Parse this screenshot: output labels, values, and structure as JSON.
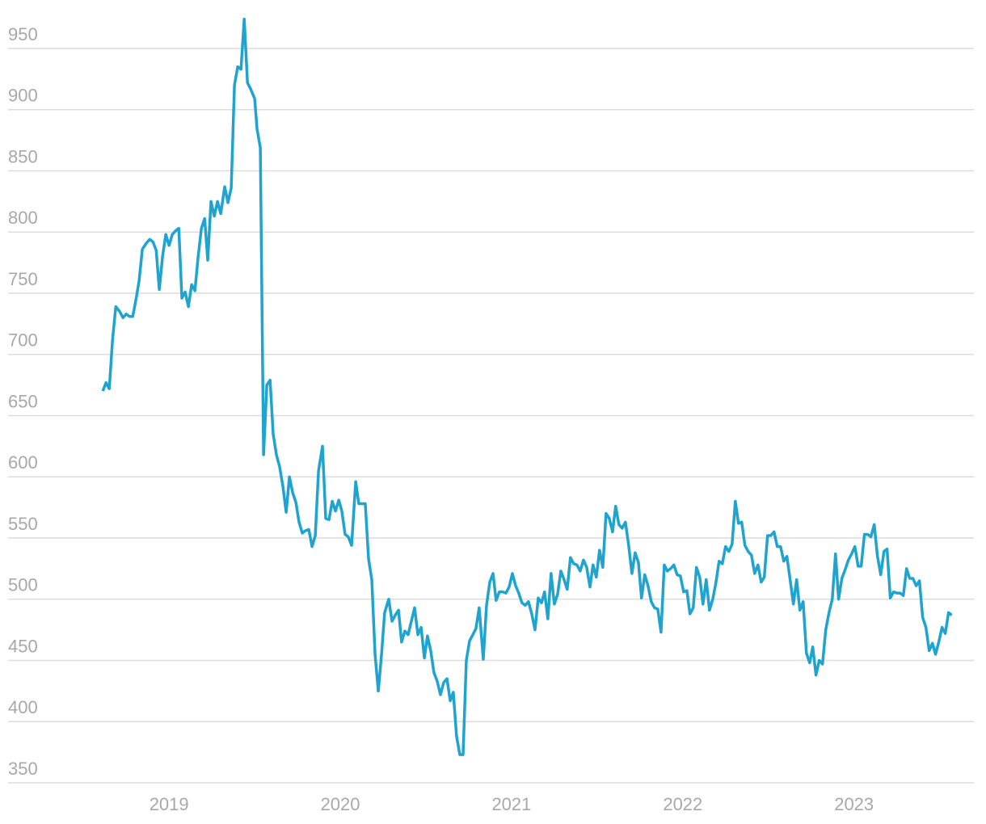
{
  "chart_data": {
    "type": "line",
    "x": [
      2018.613,
      2018.632,
      2018.651,
      2018.67,
      2018.689,
      2018.712,
      2018.731,
      2018.75,
      2018.769,
      2018.788,
      2018.807,
      2018.825,
      2018.844,
      2018.868,
      2018.887,
      2018.906,
      2018.925,
      2018.943,
      2018.962,
      2018.981,
      2019.0,
      2019.019,
      2019.038,
      2019.057,
      2019.075,
      2019.094,
      2019.113,
      2019.132,
      2019.151,
      2019.17,
      2019.189,
      2019.208,
      2019.226,
      2019.245,
      2019.264,
      2019.283,
      2019.302,
      2019.325,
      2019.344,
      2019.363,
      2019.382,
      2019.401,
      2019.42,
      2019.439,
      2019.458,
      2019.476,
      2019.5,
      2019.514,
      2019.533,
      2019.552,
      2019.571,
      2019.59,
      2019.608,
      2019.627,
      2019.646,
      2019.665,
      2019.684,
      2019.703,
      2019.722,
      2019.741,
      2019.759,
      2019.778,
      2019.797,
      2019.816,
      2019.835,
      2019.854,
      2019.873,
      2019.896,
      2019.915,
      2019.934,
      2019.953,
      2019.972,
      2019.991,
      2020.009,
      2020.028,
      2020.047,
      2020.066,
      2020.09,
      2020.108,
      2020.127,
      2020.146,
      2020.165,
      2020.184,
      2020.203,
      2020.222,
      2020.241,
      2020.259,
      2020.283,
      2020.302,
      2020.321,
      2020.34,
      2020.358,
      2020.377,
      2020.396,
      2020.415,
      2020.434,
      2020.453,
      2020.472,
      2020.491,
      2020.509,
      2020.528,
      2020.547,
      2020.566,
      2020.585,
      2020.604,
      2020.623,
      2020.642,
      2020.66,
      2020.679,
      2020.698,
      2020.717,
      2020.736,
      2020.755,
      2020.774,
      2020.792,
      2020.811,
      2020.835,
      2020.854,
      2020.873,
      2020.892,
      2020.91,
      2020.929,
      2020.948,
      2020.967,
      2020.986,
      2021.005,
      2021.024,
      2021.042,
      2021.061,
      2021.08,
      2021.099,
      2021.118,
      2021.137,
      2021.156,
      2021.175,
      2021.193,
      2021.212,
      2021.231,
      2021.25,
      2021.269,
      2021.288,
      2021.307,
      2021.325,
      2021.344,
      2021.363,
      2021.382,
      2021.401,
      2021.42,
      2021.439,
      2021.458,
      2021.476,
      2021.495,
      2021.514,
      2021.533,
      2021.552,
      2021.571,
      2021.59,
      2021.608,
      2021.627,
      2021.646,
      2021.665,
      2021.684,
      2021.703,
      2021.722,
      2021.741,
      2021.759,
      2021.778,
      2021.797,
      2021.816,
      2021.835,
      2021.854,
      2021.873,
      2021.892,
      2021.91,
      2021.929,
      2021.948,
      2021.967,
      2021.986,
      2022.005,
      2022.024,
      2022.042,
      2022.061,
      2022.08,
      2022.099,
      2022.118,
      2022.137,
      2022.156,
      2022.175,
      2022.193,
      2022.212,
      2022.231,
      2022.25,
      2022.269,
      2022.288,
      2022.307,
      2022.325,
      2022.344,
      2022.363,
      2022.382,
      2022.401,
      2022.42,
      2022.439,
      2022.458,
      2022.476,
      2022.495,
      2022.514,
      2022.533,
      2022.552,
      2022.571,
      2022.59,
      2022.608,
      2022.627,
      2022.646,
      2022.665,
      2022.684,
      2022.703,
      2022.722,
      2022.741,
      2022.759,
      2022.778,
      2022.797,
      2022.816,
      2022.835,
      2022.854,
      2022.873,
      2022.892,
      2022.91,
      2022.929,
      2022.948,
      2022.967,
      2022.986,
      2023.005,
      2023.024,
      2023.042,
      2023.061,
      2023.08,
      2023.099,
      2023.118,
      2023.137,
      2023.156,
      2023.175,
      2023.193,
      2023.212,
      2023.231,
      2023.25,
      2023.269,
      2023.288,
      2023.307,
      2023.325,
      2023.344,
      2023.363,
      2023.382,
      2023.401,
      2023.42,
      2023.439,
      2023.458,
      2023.476,
      2023.495,
      2023.514,
      2023.533,
      2023.552,
      2023.571
    ],
    "values": [
      670,
      677,
      672,
      712,
      739,
      735,
      730,
      733,
      731,
      731,
      745,
      760,
      786,
      791,
      794,
      792,
      785,
      753,
      780,
      798,
      789,
      798,
      801,
      803,
      746,
      751,
      739,
      757,
      752,
      780,
      803,
      811,
      777,
      825,
      813,
      825,
      815,
      837,
      824,
      836,
      920,
      935,
      933,
      974,
      922,
      917,
      909,
      884,
      869,
      618,
      675,
      679,
      635,
      618,
      608,
      592,
      571,
      600,
      587,
      579,
      563,
      554,
      556,
      557,
      543,
      552,
      605,
      625,
      566,
      565,
      580,
      572,
      581,
      572,
      553,
      551,
      544,
      596,
      578,
      578,
      578,
      533,
      516,
      455,
      425,
      455,
      489,
      500,
      482,
      487,
      491,
      465,
      474,
      471,
      482,
      493,
      471,
      477,
      452,
      470,
      458,
      440,
      433,
      422,
      432,
      435,
      417,
      424,
      388,
      373,
      373,
      450,
      466,
      471,
      476,
      493,
      451,
      495,
      514,
      521,
      499,
      506,
      506,
      505,
      510,
      521,
      511,
      505,
      497,
      495,
      498,
      488,
      475,
      501,
      497,
      506,
      484,
      521,
      496,
      504,
      523,
      516,
      508,
      534,
      529,
      528,
      523,
      532,
      526,
      510,
      528,
      518,
      540,
      526,
      570,
      566,
      555,
      576,
      561,
      558,
      563,
      544,
      521,
      538,
      530,
      501,
      520,
      511,
      498,
      493,
      492,
      473,
      528,
      523,
      525,
      528,
      520,
      519,
      506,
      507,
      488,
      493,
      526,
      518,
      496,
      516,
      491,
      500,
      513,
      531,
      529,
      543,
      539,
      545,
      580,
      562,
      563,
      544,
      539,
      536,
      521,
      528,
      514,
      518,
      552,
      552,
      555,
      543,
      543,
      531,
      535,
      516,
      496,
      516,
      491,
      498,
      456,
      448,
      461,
      438,
      450,
      447,
      475,
      489,
      500,
      537,
      500,
      517,
      524,
      532,
      537,
      543,
      527,
      527,
      553,
      553,
      551,
      561,
      535,
      520,
      539,
      541,
      501,
      506,
      505,
      505,
      503,
      525,
      517,
      517,
      511,
      515,
      485,
      477,
      458,
      464,
      455,
      465,
      477,
      472,
      489,
      487
    ],
    "color": "#1fa3cf",
    "xlim": [
      2018.06,
      2023.7
    ],
    "xticks": [
      2019,
      2020,
      2021,
      2022,
      2023
    ],
    "ylim": [
      350,
      980
    ],
    "yticks": [
      350,
      400,
      450,
      500,
      550,
      600,
      650,
      700,
      750,
      800,
      850,
      900,
      950
    ],
    "grid": true
  }
}
